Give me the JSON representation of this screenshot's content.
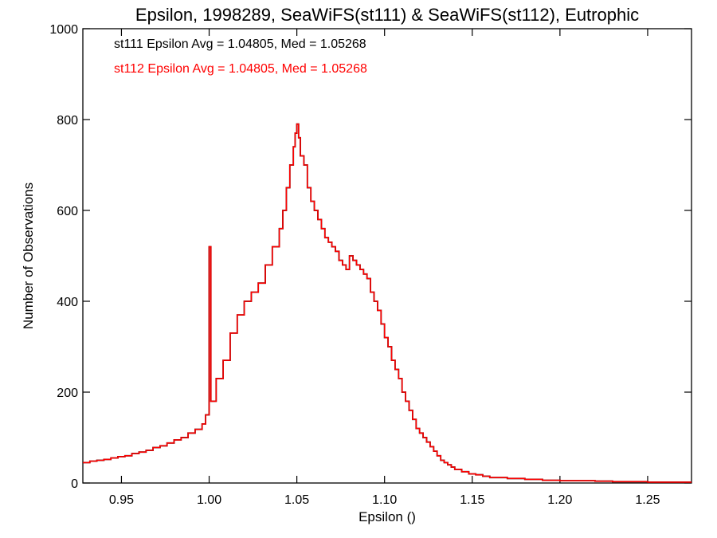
{
  "chart_data": {
    "type": "step-histogram",
    "title": "Epsilon, 1998289, SeaWiFS(st111) & SeaWiFS(st112), Eutrophic",
    "xlabel": "Epsilon ()",
    "ylabel": "Number of Observations",
    "xlim": [
      0.928,
      1.275
    ],
    "ylim": [
      0,
      1000
    ],
    "x_ticks": [
      {
        "value": 0.95,
        "label": "0.95"
      },
      {
        "value": 1.0,
        "label": "1.00"
      },
      {
        "value": 1.05,
        "label": "1.05"
      },
      {
        "value": 1.1,
        "label": "1.10"
      },
      {
        "value": 1.15,
        "label": "1.15"
      },
      {
        "value": 1.2,
        "label": "1.20"
      },
      {
        "value": 1.25,
        "label": "1.25"
      }
    ],
    "y_ticks": [
      {
        "value": 0,
        "label": "0"
      },
      {
        "value": 200,
        "label": "200"
      },
      {
        "value": 400,
        "label": "400"
      },
      {
        "value": 600,
        "label": "600"
      },
      {
        "value": 800,
        "label": "800"
      },
      {
        "value": 1000,
        "label": "1000"
      }
    ],
    "grid": false,
    "annotations": [
      {
        "text": "st111 Epsilon Avg = 1.04805, Med = 1.05268",
        "color": "#000000"
      },
      {
        "text": "st112 Epsilon Avg = 1.04805, Med = 1.05268",
        "color": "#ff0000"
      }
    ],
    "series": [
      {
        "name": "st111",
        "color": "#000000",
        "x": [
          0.928,
          0.932,
          0.936,
          0.94,
          0.944,
          0.948,
          0.952,
          0.956,
          0.96,
          0.964,
          0.968,
          0.972,
          0.976,
          0.98,
          0.984,
          0.988,
          0.992,
          0.996,
          0.998,
          1.0,
          1.001,
          1.004,
          1.008,
          1.012,
          1.016,
          1.02,
          1.024,
          1.028,
          1.032,
          1.036,
          1.04,
          1.042,
          1.044,
          1.046,
          1.048,
          1.049,
          1.05,
          1.051,
          1.052,
          1.054,
          1.056,
          1.058,
          1.06,
          1.062,
          1.064,
          1.066,
          1.068,
          1.07,
          1.072,
          1.074,
          1.076,
          1.078,
          1.08,
          1.082,
          1.084,
          1.086,
          1.088,
          1.09,
          1.092,
          1.094,
          1.096,
          1.098,
          1.1,
          1.102,
          1.104,
          1.106,
          1.108,
          1.11,
          1.112,
          1.114,
          1.116,
          1.118,
          1.12,
          1.122,
          1.124,
          1.126,
          1.128,
          1.13,
          1.132,
          1.134,
          1.136,
          1.138,
          1.14,
          1.144,
          1.148,
          1.152,
          1.156,
          1.16,
          1.17,
          1.18,
          1.19,
          1.2,
          1.21,
          1.22,
          1.23,
          1.24,
          1.25,
          1.26,
          1.27
        ],
        "y": [
          45,
          48,
          50,
          52,
          55,
          58,
          60,
          65,
          68,
          72,
          78,
          82,
          88,
          95,
          100,
          110,
          118,
          130,
          150,
          520,
          180,
          230,
          270,
          330,
          370,
          400,
          420,
          440,
          480,
          520,
          560,
          600,
          650,
          700,
          740,
          770,
          790,
          760,
          720,
          700,
          650,
          620,
          600,
          580,
          560,
          540,
          530,
          520,
          510,
          490,
          480,
          470,
          500,
          490,
          480,
          470,
          460,
          450,
          420,
          400,
          380,
          350,
          320,
          300,
          270,
          250,
          230,
          200,
          180,
          160,
          140,
          120,
          110,
          100,
          90,
          80,
          70,
          60,
          50,
          45,
          40,
          35,
          30,
          25,
          20,
          18,
          15,
          12,
          10,
          8,
          6,
          5,
          5,
          4,
          3,
          3,
          2,
          2,
          2
        ]
      },
      {
        "name": "st112",
        "color": "#ff0000",
        "x": [
          0.928,
          0.932,
          0.936,
          0.94,
          0.944,
          0.948,
          0.952,
          0.956,
          0.96,
          0.964,
          0.968,
          0.972,
          0.976,
          0.98,
          0.984,
          0.988,
          0.992,
          0.996,
          0.998,
          1.0,
          1.001,
          1.004,
          1.008,
          1.012,
          1.016,
          1.02,
          1.024,
          1.028,
          1.032,
          1.036,
          1.04,
          1.042,
          1.044,
          1.046,
          1.048,
          1.049,
          1.05,
          1.051,
          1.052,
          1.054,
          1.056,
          1.058,
          1.06,
          1.062,
          1.064,
          1.066,
          1.068,
          1.07,
          1.072,
          1.074,
          1.076,
          1.078,
          1.08,
          1.082,
          1.084,
          1.086,
          1.088,
          1.09,
          1.092,
          1.094,
          1.096,
          1.098,
          1.1,
          1.102,
          1.104,
          1.106,
          1.108,
          1.11,
          1.112,
          1.114,
          1.116,
          1.118,
          1.12,
          1.122,
          1.124,
          1.126,
          1.128,
          1.13,
          1.132,
          1.134,
          1.136,
          1.138,
          1.14,
          1.144,
          1.148,
          1.152,
          1.156,
          1.16,
          1.17,
          1.18,
          1.19,
          1.2,
          1.21,
          1.22,
          1.23,
          1.24,
          1.25,
          1.26,
          1.27
        ],
        "y": [
          45,
          48,
          50,
          52,
          55,
          58,
          60,
          65,
          68,
          72,
          78,
          82,
          88,
          95,
          100,
          110,
          118,
          130,
          150,
          520,
          180,
          230,
          270,
          330,
          370,
          400,
          420,
          440,
          480,
          520,
          560,
          600,
          650,
          700,
          740,
          770,
          790,
          760,
          720,
          700,
          650,
          620,
          600,
          580,
          560,
          540,
          530,
          520,
          510,
          490,
          480,
          470,
          500,
          490,
          480,
          470,
          460,
          450,
          420,
          400,
          380,
          350,
          320,
          300,
          270,
          250,
          230,
          200,
          180,
          160,
          140,
          120,
          110,
          100,
          90,
          80,
          70,
          60,
          50,
          45,
          40,
          35,
          30,
          25,
          20,
          18,
          15,
          12,
          10,
          8,
          6,
          5,
          5,
          4,
          3,
          3,
          2,
          2,
          2
        ]
      }
    ]
  }
}
